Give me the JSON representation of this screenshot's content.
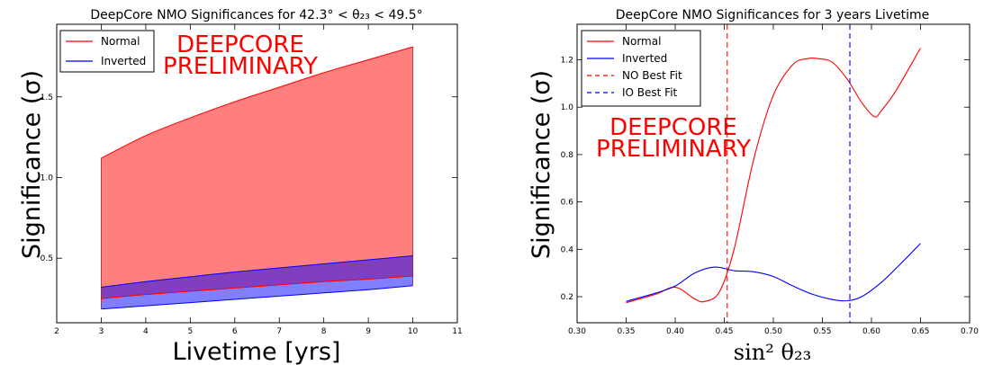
{
  "chart_data": [
    {
      "type": "area",
      "title": "DeepCore NMO Significances for 42.3° < θ₂₃ < 49.5°",
      "xlabel": "Livetime [yrs]",
      "ylabel": "Significance (σ)",
      "xlim": [
        2,
        11
      ],
      "ylim": [
        0.1,
        1.95
      ],
      "xticks": [
        "2",
        "3",
        "4",
        "5",
        "6",
        "7",
        "8",
        "9",
        "10",
        "11"
      ],
      "yticks": [
        "0.5",
        "1.0",
        "1.5"
      ],
      "legend": {
        "placement": "top-left",
        "entries": [
          "Normal",
          "Inverted"
        ]
      },
      "watermark": [
        "DEEPCORE",
        "PRELIMINARY"
      ],
      "colors": {
        "normal": "#ff0000",
        "inverted": "#0000ff",
        "normal_fill": "#ff7f7f",
        "inverted_fill": "#7f7fff",
        "overlap_fill": "#7f3fbf"
      },
      "x": [
        3,
        4,
        5,
        6,
        7,
        8,
        9,
        10
      ],
      "series": [
        {
          "name": "Normal",
          "upper": [
            1.12,
            1.26,
            1.37,
            1.47,
            1.56,
            1.65,
            1.73,
            1.81
          ],
          "lower": [
            0.25,
            0.275,
            0.295,
            0.315,
            0.335,
            0.355,
            0.37,
            0.39
          ]
        },
        {
          "name": "Inverted",
          "upper": [
            0.32,
            0.355,
            0.385,
            0.415,
            0.44,
            0.465,
            0.49,
            0.515
          ],
          "lower": [
            0.185,
            0.205,
            0.225,
            0.245,
            0.265,
            0.285,
            0.305,
            0.33
          ]
        }
      ]
    },
    {
      "type": "line",
      "title": "DeepCore NMO Significances for 3 years Livetime",
      "xlabel": "sin² θ₂₃",
      "ylabel": "Significance (σ)",
      "xlim": [
        0.3,
        0.7
      ],
      "ylim": [
        0.09,
        1.35
      ],
      "xticks": [
        "0.30",
        "0.35",
        "0.40",
        "0.45",
        "0.50",
        "0.55",
        "0.60",
        "0.65",
        "0.70"
      ],
      "yticks": [
        "0.2",
        "0.4",
        "0.6",
        "0.8",
        "1.0",
        "1.2"
      ],
      "legend": {
        "placement": "top-left",
        "entries": [
          "Normal",
          "Inverted",
          "NO Best Fit",
          "IO Best Fit"
        ]
      },
      "watermark": [
        "DEEPCORE",
        "PRELIMINARY"
      ],
      "colors": {
        "normal": "#ff0000",
        "inverted": "#0000ff"
      },
      "best_fits": {
        "NO Best Fit": 0.453,
        "IO Best Fit": 0.578
      },
      "series": [
        {
          "name": "Normal",
          "x": [
            0.35,
            0.38,
            0.4,
            0.42,
            0.43,
            0.445,
            0.46,
            0.48,
            0.5,
            0.52,
            0.535,
            0.545,
            0.56,
            0.575,
            0.59,
            0.603,
            0.61,
            0.625,
            0.65
          ],
          "y": [
            0.175,
            0.21,
            0.24,
            0.19,
            0.18,
            0.22,
            0.4,
            0.78,
            1.05,
            1.18,
            1.205,
            1.205,
            1.19,
            1.12,
            1.02,
            0.96,
            0.985,
            1.07,
            1.25
          ]
        },
        {
          "name": "Inverted",
          "x": [
            0.35,
            0.38,
            0.4,
            0.42,
            0.44,
            0.46,
            0.48,
            0.5,
            0.52,
            0.54,
            0.56,
            0.575,
            0.59,
            0.61,
            0.63,
            0.65
          ],
          "y": [
            0.18,
            0.215,
            0.245,
            0.3,
            0.325,
            0.31,
            0.305,
            0.285,
            0.245,
            0.21,
            0.188,
            0.183,
            0.2,
            0.26,
            0.34,
            0.425
          ]
        }
      ]
    }
  ]
}
